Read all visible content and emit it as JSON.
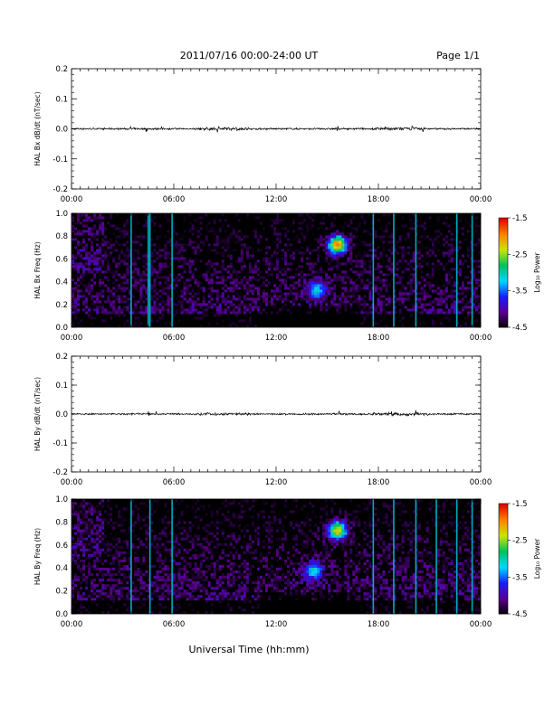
{
  "header": {
    "title": "2011/07/16  00:00-24:00 UT",
    "page": "Page 1/1"
  },
  "xaxis": {
    "label": "Universal Time (hh:mm)",
    "ticks": [
      "00:00",
      "06:00",
      "12:00",
      "18:00",
      "00:00"
    ],
    "range_hours": [
      0,
      24
    ]
  },
  "colorbar": {
    "label": "Log₁₀ Power",
    "ticks": [
      "-1.5",
      "-2.5",
      "-3.5",
      "-4.5"
    ],
    "range": [
      -4.5,
      -1.5
    ],
    "colors": [
      "#000000",
      "#5a0090",
      "#1a1aff",
      "#00d8ff",
      "#00c060",
      "#c8e600",
      "#ff8000",
      "#e00000"
    ]
  },
  "chart_data": [
    {
      "type": "line",
      "ylabel": "HAL Bx dB/dt (nT/sec)",
      "ylim": [
        -0.2,
        0.2
      ],
      "yticks": [
        "0.2",
        "0.1",
        "0.0",
        "-0.1",
        "-0.2"
      ],
      "x_range_hours": [
        0,
        24
      ],
      "baseline": 0.0,
      "spikes_hours": [
        3.5,
        4.4,
        5.3,
        8.6,
        9.7,
        15.6,
        18.4,
        19.2,
        20.0,
        20.6
      ]
    },
    {
      "type": "heatmap",
      "ylabel": "HAL Bx Freq (Hz)",
      "ylim": [
        0.0,
        1.0
      ],
      "yticks": [
        "1.0",
        "0.8",
        "0.6",
        "0.4",
        "0.2",
        "0.0"
      ],
      "x_range_hours": [
        0,
        24
      ],
      "vertical_lines_hours": [
        3.5,
        4.5,
        4.6,
        5.9,
        17.7,
        18.9,
        20.2,
        22.6,
        23.5
      ],
      "blobs": [
        {
          "center_hours": 15.6,
          "center_hz": 0.73,
          "level": -1.6
        },
        {
          "center_hours": 14.4,
          "center_hz": 0.33,
          "level": -3.0
        }
      ]
    },
    {
      "type": "line",
      "ylabel": "HAL By dB/dt (nT/sec)",
      "ylim": [
        -0.2,
        0.2
      ],
      "yticks": [
        "0.2",
        "0.1",
        "0.0",
        "-0.1",
        "-0.2"
      ],
      "x_range_hours": [
        0,
        24
      ],
      "baseline": 0.0,
      "spikes_hours": [
        4.5,
        5.0,
        15.7,
        18.8,
        20.2
      ]
    },
    {
      "type": "heatmap",
      "ylabel": "HAL By Freq (Hz)",
      "ylim": [
        0.0,
        1.0
      ],
      "yticks": [
        "1.0",
        "0.8",
        "0.6",
        "0.4",
        "0.2",
        "0.0"
      ],
      "x_range_hours": [
        0,
        24
      ],
      "vertical_lines_hours": [
        3.5,
        4.6,
        5.9,
        17.7,
        18.9,
        20.2,
        21.4,
        22.6,
        23.5
      ],
      "blobs": [
        {
          "center_hours": 15.6,
          "center_hz": 0.73,
          "level": -1.8
        },
        {
          "center_hours": 14.2,
          "center_hz": 0.38,
          "level": -2.9
        }
      ]
    }
  ]
}
